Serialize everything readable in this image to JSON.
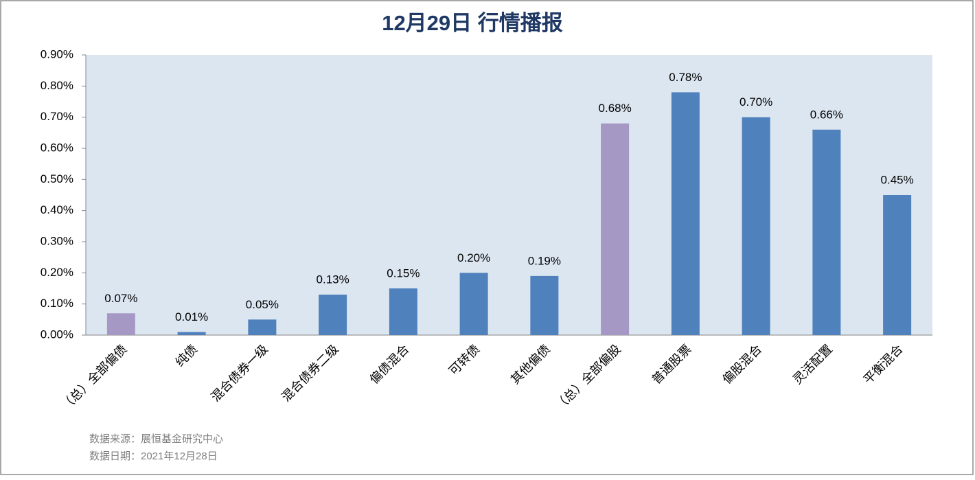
{
  "chart_data": {
    "type": "bar",
    "title": "12月29日  行情播报",
    "categories": [
      "（总）全部偏债",
      "纯债",
      "混合债券一级",
      "混合债券二级",
      "偏债混合",
      "可转债",
      "其他偏债",
      "（总）全部偏股",
      "普通股票",
      "偏股混合",
      "灵活配置",
      "平衡混合"
    ],
    "values": [
      0.07,
      0.01,
      0.05,
      0.13,
      0.15,
      0.2,
      0.19,
      0.68,
      0.78,
      0.7,
      0.66,
      0.45
    ],
    "value_labels": [
      "0.07%",
      "0.01%",
      "0.05%",
      "0.13%",
      "0.15%",
      "0.20%",
      "0.19%",
      "0.68%",
      "0.78%",
      "0.70%",
      "0.66%",
      "0.45%"
    ],
    "colors": [
      "#a698c4",
      "#4f81bd",
      "#4f81bd",
      "#4f81bd",
      "#4f81bd",
      "#4f81bd",
      "#4f81bd",
      "#a698c4",
      "#4f81bd",
      "#4f81bd",
      "#4f81bd",
      "#4f81bd"
    ],
    "ylim": [
      0,
      0.9
    ],
    "yticks": [
      {
        "value": 0,
        "label": "0.00%"
      },
      {
        "value": 0.1,
        "label": "0.10%"
      },
      {
        "value": 0.2,
        "label": "0.20%"
      },
      {
        "value": 0.3,
        "label": "0.30%"
      },
      {
        "value": 0.4,
        "label": "0.40%"
      },
      {
        "value": 0.5,
        "label": "0.50%"
      },
      {
        "value": 0.6,
        "label": "0.60%"
      },
      {
        "value": 0.7,
        "label": "0.70%"
      },
      {
        "value": 0.8,
        "label": "0.80%"
      },
      {
        "value": 0.9,
        "label": "0.90%"
      }
    ],
    "notes": [
      "数据来源：展恒基金研究中心",
      "数据日期：2021年12月28日"
    ]
  }
}
